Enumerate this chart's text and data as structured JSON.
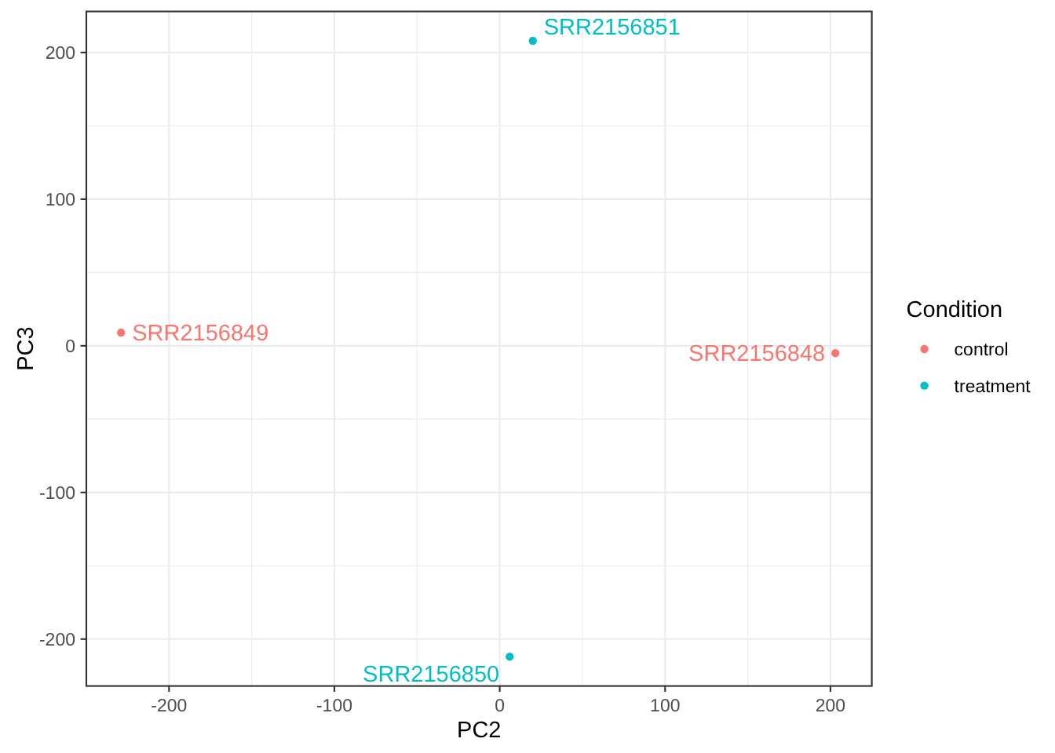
{
  "chart_data": {
    "type": "scatter",
    "xlabel": "PC2",
    "ylabel": "PC3",
    "legend_title": "Condition",
    "legend": "right",
    "grid": true,
    "marker": "circle",
    "xlim": [
      -250,
      225
    ],
    "xticks": [
      -200,
      -100,
      0,
      100,
      200
    ],
    "ylim": [
      -232,
      228
    ],
    "yticks": [
      -200,
      -100,
      0,
      100,
      200
    ],
    "series": [
      {
        "name": "control",
        "color": "#f8766d",
        "x": [
          -229,
          203
        ],
        "values": [
          9,
          -5
        ],
        "value_labels": [
          "SRR2156849",
          "SRR2156848"
        ]
      },
      {
        "name": "treatment",
        "color": "#00bfc4",
        "x": [
          20,
          6
        ],
        "values": [
          208,
          -212
        ],
        "value_labels": [
          "SRR2156851",
          "SRR2156850"
        ]
      }
    ]
  }
}
